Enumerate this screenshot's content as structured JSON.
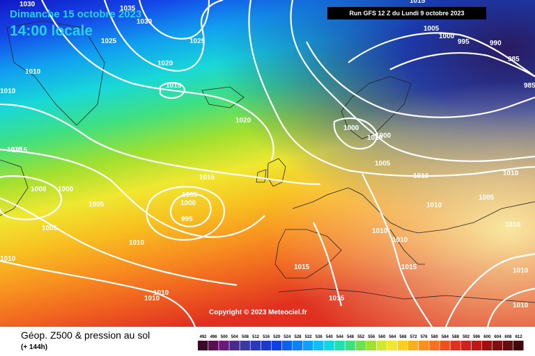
{
  "header": {
    "date_line": "Dimanche 15 octobre 2023",
    "time_line": "14:00 locale",
    "run_info": "Run GFS 12 Z du Lundi 9 octobre 2023"
  },
  "footer": {
    "parameter": "Géop. Z500 & pression au sol",
    "lead_time": "(+ 144h)",
    "copyright": "Copyright © 2023 Meteociel.fr"
  },
  "legend": {
    "unit_values": [
      "492",
      "496",
      "500",
      "504",
      "508",
      "512",
      "516",
      "520",
      "524",
      "528",
      "532",
      "536",
      "540",
      "544",
      "548",
      "552",
      "556",
      "560",
      "564",
      "568",
      "572",
      "576",
      "580",
      "584",
      "588",
      "592",
      "596",
      "600",
      "604",
      "608",
      "612"
    ],
    "colors": [
      "#3a0a2a",
      "#5a1050",
      "#6a1a7a",
      "#4a2a8a",
      "#3a3aa0",
      "#2a3ab8",
      "#1a3ad0",
      "#1040e8",
      "#1060f0",
      "#1080f8",
      "#10a0ff",
      "#10c0f8",
      "#10d8e0",
      "#20e0b0",
      "#40e080",
      "#70e050",
      "#a0e030",
      "#d0e830",
      "#f0e830",
      "#f8d020",
      "#f8b020",
      "#f89020",
      "#f87020",
      "#f05020",
      "#e03020",
      "#d02020",
      "#c01818",
      "#a01010",
      "#801010",
      "#601010",
      "#400808"
    ]
  },
  "isobars": [
    "1030",
    "1035",
    "1030",
    "1025",
    "1025",
    "1020",
    "1015",
    "1010",
    "1010",
    "1015",
    "1020",
    "1015",
    "1000",
    "1000",
    "1005",
    "1005",
    "1000",
    "995",
    "1005",
    "1010",
    "1010",
    "1015",
    "1010",
    "1015",
    "1000",
    "1010",
    "1000",
    "1005",
    "1010",
    "1010",
    "1010",
    "1010",
    "1010",
    "1015",
    "1015",
    "1005",
    "1010",
    "1005",
    "1000",
    "995",
    "990",
    "985",
    "985",
    "1015",
    "1010",
    "1010",
    "1010"
  ]
}
